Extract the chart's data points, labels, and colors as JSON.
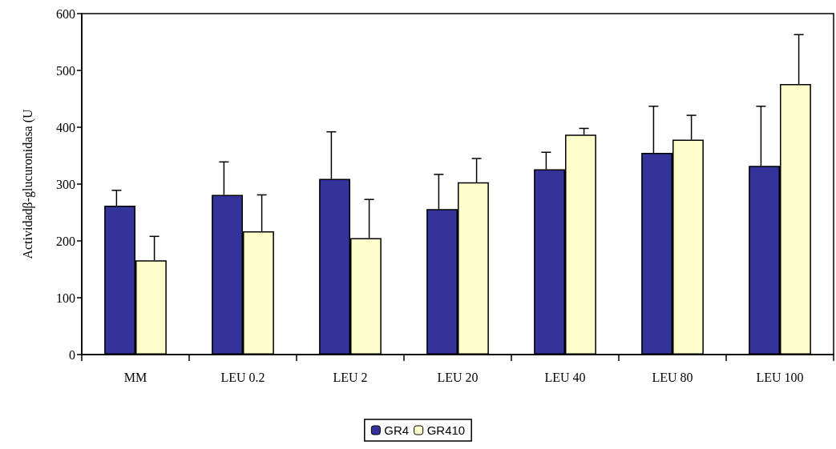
{
  "chart_data": {
    "type": "bar",
    "ylabel": "Actividadβ-glucuronidasa (U",
    "categories": [
      "MM",
      "LEU 0.2",
      "LEU 2",
      "LEU 20",
      "LEU 40",
      "LEU 80",
      "LEU 100"
    ],
    "series": [
      {
        "name": "GR4",
        "color": "#333399",
        "values": [
          262,
          281,
          309,
          256,
          326,
          355,
          332
        ],
        "errors": [
          [
            262,
            289
          ],
          [
            281,
            339
          ],
          [
            309,
            392
          ],
          [
            256,
            317
          ],
          [
            326,
            356
          ],
          [
            355,
            437
          ],
          [
            332,
            437
          ]
        ]
      },
      {
        "name": "GR410",
        "color": "#ffffcc",
        "values": [
          166,
          217,
          205,
          303,
          387,
          378,
          476
        ],
        "errors": [
          [
            166,
            208
          ],
          [
            217,
            281
          ],
          [
            205,
            273
          ],
          [
            303,
            345
          ],
          [
            387,
            398
          ],
          [
            378,
            421
          ],
          [
            476,
            563
          ]
        ]
      }
    ],
    "ylim": [
      0,
      600
    ],
    "yticks": [
      0,
      100,
      200,
      300,
      400,
      500,
      600
    ],
    "grid": false,
    "legend": "bottom"
  }
}
